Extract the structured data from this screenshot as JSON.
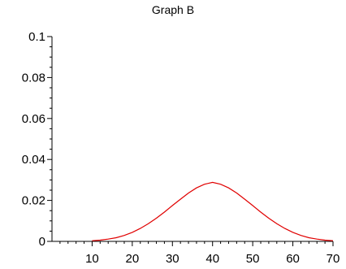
{
  "chart_data": {
    "type": "line",
    "title": "Graph B",
    "xlabel": "",
    "ylabel": "",
    "xlim": [
      0,
      70
    ],
    "ylim": [
      0,
      0.1
    ],
    "x_ticks": [
      10,
      20,
      30,
      40,
      50,
      60,
      70
    ],
    "x_tick_labels": [
      "10",
      "20",
      "30",
      "40",
      "50",
      "60",
      "70"
    ],
    "y_ticks": [
      0,
      0.02,
      0.04,
      0.06,
      0.08,
      0.1
    ],
    "y_tick_labels": [
      "0",
      "0.02",
      "0.04",
      "0.06",
      "0.08",
      "0.1"
    ],
    "grid": false,
    "series": [
      {
        "color": "#e00000",
        "x": [
          10,
          12,
          14,
          16,
          18,
          20,
          22,
          24,
          26,
          28,
          30,
          32,
          34,
          36,
          38,
          40,
          42,
          44,
          46,
          48,
          50,
          52,
          54,
          56,
          58,
          60,
          62,
          64,
          66,
          68,
          70
        ],
        "y": [
          0.0003,
          0.0006,
          0.0011,
          0.0018,
          0.0029,
          0.0044,
          0.0063,
          0.0086,
          0.0113,
          0.0143,
          0.0175,
          0.0206,
          0.0236,
          0.0261,
          0.0279,
          0.0288,
          0.0279,
          0.0261,
          0.0236,
          0.0206,
          0.0175,
          0.0143,
          0.0113,
          0.0086,
          0.0063,
          0.0044,
          0.0029,
          0.0018,
          0.0011,
          0.0006,
          0.0003
        ]
      }
    ]
  }
}
